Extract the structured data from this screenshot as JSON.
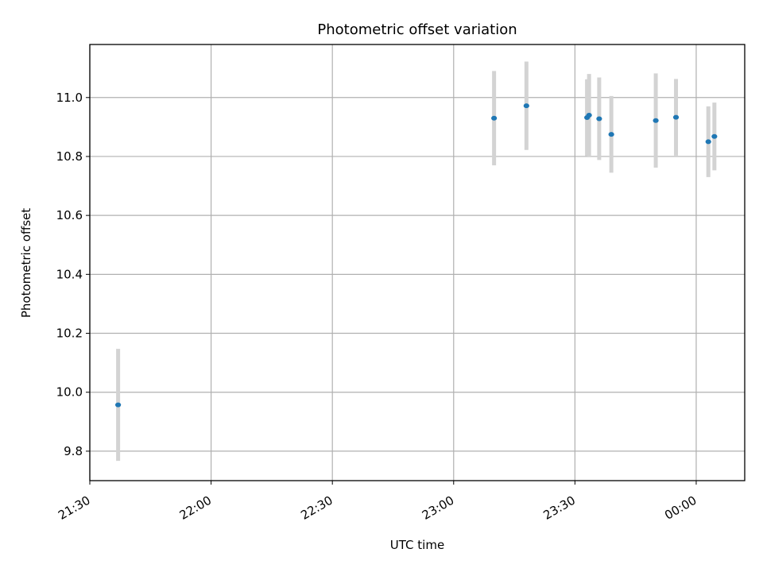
{
  "chart_data": {
    "type": "scatter",
    "title": "Photometric offset variation",
    "xlabel": "UTC time",
    "ylabel": "Photometric offset",
    "x_ticks": [
      "21:30",
      "22:00",
      "22:30",
      "23:00",
      "23:30",
      "00:00"
    ],
    "y_ticks": [
      "9.8",
      "10.0",
      "10.2",
      "10.4",
      "10.6",
      "10.8",
      "11.0"
    ],
    "y_tick_values": [
      9.8,
      10.0,
      10.2,
      10.4,
      10.6,
      10.8,
      11.0
    ],
    "xlim": [
      "21:30",
      "00:12"
    ],
    "ylim": [
      9.7,
      11.18
    ],
    "grid": true,
    "colors": {
      "marker": "#1f77b4",
      "errorbar": "#d3d3d3"
    },
    "series": [
      {
        "points": [
          {
            "x": "21:37",
            "y": 9.957,
            "yerr": 0.19
          },
          {
            "x": "23:10",
            "y": 10.93,
            "yerr": 0.16
          },
          {
            "x": "23:18",
            "y": 10.972,
            "yerr": 0.15
          },
          {
            "x": "23:33",
            "y": 10.932,
            "yerr": 0.13
          },
          {
            "x": "23:33:30",
            "y": 10.94,
            "yerr": 0.14
          },
          {
            "x": "23:36",
            "y": 10.928,
            "yerr": 0.14
          },
          {
            "x": "23:39",
            "y": 10.875,
            "yerr": 0.13
          },
          {
            "x": "23:50",
            "y": 10.922,
            "yerr": 0.16
          },
          {
            "x": "23:55",
            "y": 10.933,
            "yerr": 0.13
          },
          {
            "x": "00:03",
            "y": 10.85,
            "yerr": 0.12
          },
          {
            "x": "00:04:30",
            "y": 10.868,
            "yerr": 0.115
          }
        ]
      }
    ]
  }
}
